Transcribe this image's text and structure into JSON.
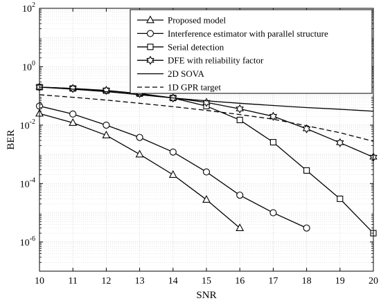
{
  "chart_data": {
    "type": "line",
    "title": "",
    "xlabel": "SNR",
    "ylabel": "BER",
    "xlim": [
      10,
      20
    ],
    "ylim": [
      1e-07,
      100
    ],
    "yscale": "log",
    "grid": true,
    "legend_position": "top-right",
    "x_ticks": [
      {
        "value": 10,
        "label": "10"
      },
      {
        "value": 11,
        "label": "11"
      },
      {
        "value": 12,
        "label": "12"
      },
      {
        "value": 13,
        "label": "13"
      },
      {
        "value": 14,
        "label": "14"
      },
      {
        "value": 15,
        "label": "15"
      },
      {
        "value": 16,
        "label": "16"
      },
      {
        "value": 17,
        "label": "17"
      },
      {
        "value": 18,
        "label": "18"
      },
      {
        "value": 19,
        "label": "19"
      },
      {
        "value": 20,
        "label": "20"
      }
    ],
    "y_ticks": [
      {
        "value": 100,
        "base": "10",
        "exp": "2"
      },
      {
        "value": 1,
        "base": "10",
        "exp": "0"
      },
      {
        "value": 0.01,
        "base": "10",
        "exp": "-2"
      },
      {
        "value": 0.0001,
        "base": "10",
        "exp": "-4"
      },
      {
        "value": 1e-06,
        "base": "10",
        "exp": "-6"
      }
    ],
    "series": [
      {
        "name": "Proposed model",
        "marker": "triangle",
        "dash": "",
        "x": [
          10,
          11,
          12,
          13,
          14,
          15,
          16
        ],
        "y": [
          0.025,
          0.012,
          0.0045,
          0.001,
          0.0002,
          2.8e-05,
          3e-06
        ]
      },
      {
        "name": "Interference estimator with parallel structure",
        "marker": "circle",
        "dash": "",
        "x": [
          10,
          11,
          12,
          13,
          14,
          15,
          16,
          17,
          18
        ],
        "y": [
          0.045,
          0.024,
          0.01,
          0.0038,
          0.0012,
          0.00025,
          4e-05,
          1e-05,
          3e-06
        ]
      },
      {
        "name": "Serial detection",
        "marker": "square",
        "dash": "",
        "x": [
          10,
          11,
          12,
          13,
          14,
          15,
          16,
          17,
          18,
          19,
          20
        ],
        "y": [
          0.2,
          0.18,
          0.15,
          0.12,
          0.085,
          0.045,
          0.015,
          0.0026,
          0.00028,
          3e-05,
          2e-06
        ]
      },
      {
        "name": "DFE with reliability factor",
        "marker": "star",
        "dash": "",
        "x": [
          10,
          11,
          12,
          13,
          14,
          15,
          16,
          17,
          18,
          19,
          20
        ],
        "y": [
          0.2,
          0.18,
          0.155,
          0.12,
          0.085,
          0.06,
          0.036,
          0.02,
          0.0075,
          0.0025,
          0.0008
        ]
      },
      {
        "name": "2D SOVA",
        "marker": "none",
        "dash": "",
        "x": [
          10,
          11,
          12,
          13,
          14,
          15,
          16,
          17,
          18,
          19,
          20
        ],
        "y": [
          0.2,
          0.17,
          0.14,
          0.11,
          0.085,
          0.068,
          0.056,
          0.047,
          0.04,
          0.035,
          0.03
        ]
      },
      {
        "name": "1D GPR target",
        "marker": "none",
        "dash": "7,4",
        "x": [
          10,
          11,
          12,
          13,
          14,
          15,
          16,
          17,
          18,
          19,
          20
        ],
        "y": [
          0.11,
          0.09,
          0.072,
          0.056,
          0.043,
          0.032,
          0.023,
          0.016,
          0.0095,
          0.0055,
          0.0028
        ]
      }
    ]
  }
}
